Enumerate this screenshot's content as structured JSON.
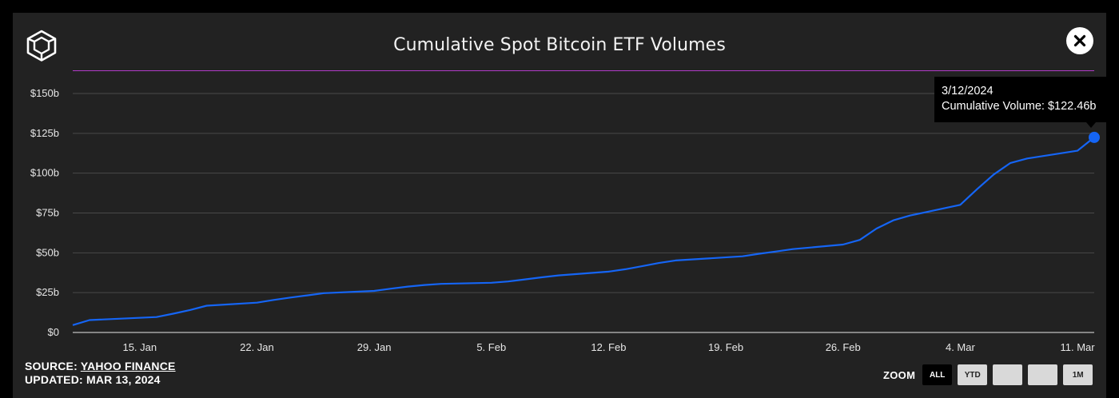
{
  "title": "Cumulative Spot Bitcoin ETF Volumes",
  "tooltip": {
    "date": "3/12/2024",
    "label": "Cumulative Volume: $122.46b"
  },
  "source": {
    "prefix": "SOURCE:",
    "name": "YAHOO FINANCE",
    "updated": "UPDATED: MAR 13, 2024"
  },
  "zoom": {
    "label": "ZOOM",
    "buttons": [
      "ALL",
      "YTD",
      "",
      "",
      "1M"
    ],
    "active": "ALL"
  },
  "colors": {
    "background": "#222222",
    "line": "#1565f5",
    "accent_rule": "#b23cc9",
    "grid": "#4a4a4a"
  },
  "icons": [
    "logo-cube-icon",
    "close-icon"
  ],
  "chart_data": {
    "type": "line",
    "title": "Cumulative Spot Bitcoin ETF Volumes",
    "xlabel": "",
    "ylabel": "",
    "yticks": [
      "$0",
      "$25b",
      "$50b",
      "$75b",
      "$100b",
      "$125b",
      "$150b"
    ],
    "ytick_values": [
      0,
      25,
      50,
      75,
      100,
      125,
      150
    ],
    "ylim": [
      0,
      150
    ],
    "xticks": [
      "15. Jan",
      "22. Jan",
      "29. Jan",
      "5. Feb",
      "12. Feb",
      "19. Feb",
      "26. Feb",
      "4. Mar",
      "11. Mar"
    ],
    "xtick_dates": [
      "2024-01-15",
      "2024-01-22",
      "2024-01-29",
      "2024-02-05",
      "2024-02-12",
      "2024-02-19",
      "2024-02-26",
      "2024-03-04",
      "2024-03-11"
    ],
    "grid": true,
    "legend": "none",
    "series": [
      {
        "x": [
          "2024-01-11",
          "2024-01-12",
          "2024-01-16",
          "2024-01-17",
          "2024-01-18",
          "2024-01-19",
          "2024-01-22",
          "2024-01-23",
          "2024-01-24",
          "2024-01-25",
          "2024-01-26",
          "2024-01-29",
          "2024-01-30",
          "2024-01-31",
          "2024-02-01",
          "2024-02-02",
          "2024-02-05",
          "2024-02-06",
          "2024-02-07",
          "2024-02-08",
          "2024-02-09",
          "2024-02-12",
          "2024-02-13",
          "2024-02-14",
          "2024-02-15",
          "2024-02-16",
          "2024-02-20",
          "2024-02-21",
          "2024-02-22",
          "2024-02-23",
          "2024-02-26",
          "2024-02-27",
          "2024-02-28",
          "2024-02-29",
          "2024-03-01",
          "2024-03-04",
          "2024-03-05",
          "2024-03-06",
          "2024-03-07",
          "2024-03-08",
          "2024-03-11",
          "2024-03-12"
        ],
        "values": [
          4.6,
          7.8,
          9.7,
          11.8,
          14.1,
          16.8,
          18.7,
          20.4,
          21.9,
          23.3,
          24.7,
          26.1,
          27.5,
          28.8,
          29.8,
          30.5,
          31.2,
          32.0,
          33.3,
          34.6,
          35.8,
          38.2,
          39.7,
          41.6,
          43.6,
          45.2,
          47.8,
          49.4,
          50.8,
          52.3,
          55.2,
          58.1,
          65.2,
          70.4,
          73.4,
          80.1,
          89.9,
          99.2,
          106.4,
          109.2,
          114.1,
          122.46
        ]
      }
    ]
  }
}
